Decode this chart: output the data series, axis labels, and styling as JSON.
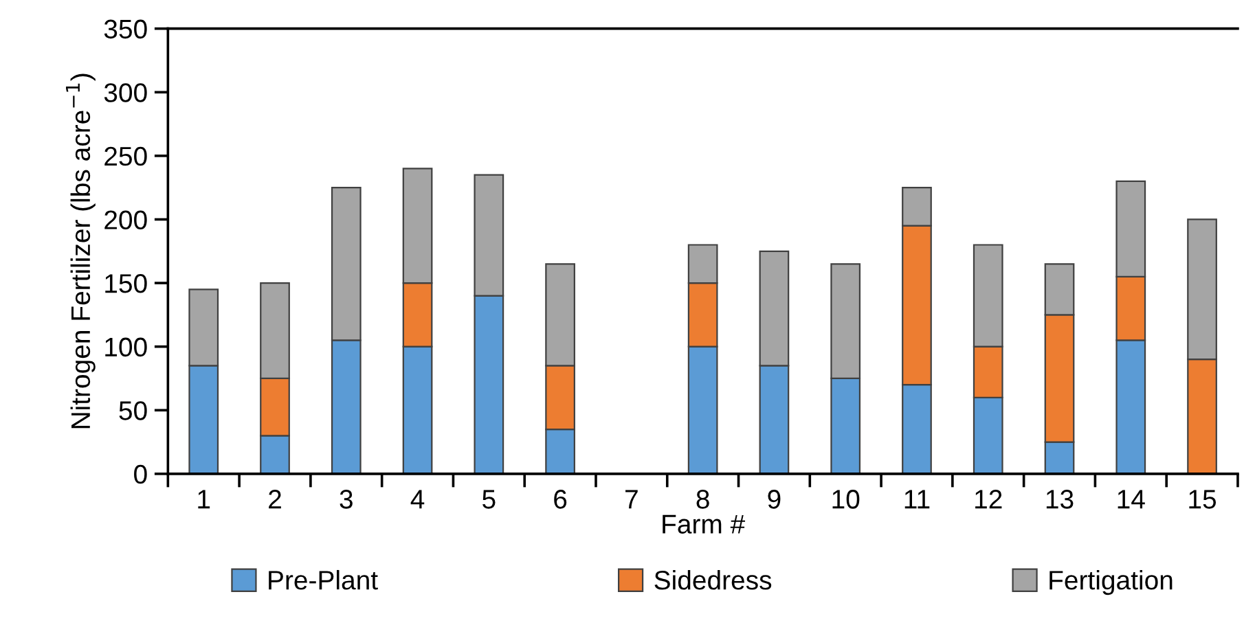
{
  "chart_data": {
    "type": "bar",
    "stacked": true,
    "xlabel": "Farm #",
    "ylabel": "Nitrogen Fertilizer (lbs acre$^{−1}$)",
    "categories": [
      "1",
      "2",
      "3",
      "4",
      "5",
      "6",
      "7",
      "8",
      "9",
      "10",
      "11",
      "12",
      "13",
      "14",
      "15"
    ],
    "series": [
      {
        "name": "Pre-Plant",
        "color": "#5b9bd5",
        "values": [
          85,
          30,
          105,
          100,
          140,
          35,
          null,
          100,
          85,
          75,
          70,
          60,
          25,
          105,
          null
        ]
      },
      {
        "name": "Sidedress",
        "color": "#ed7d31",
        "values": [
          null,
          45,
          null,
          50,
          null,
          50,
          null,
          50,
          null,
          null,
          125,
          40,
          100,
          50,
          90
        ]
      },
      {
        "name": "Fertigation",
        "color": "#a5a5a5",
        "values": [
          60,
          75,
          120,
          90,
          95,
          80,
          null,
          30,
          90,
          90,
          30,
          80,
          40,
          75,
          110
        ]
      }
    ],
    "ylim": [
      0,
      350
    ],
    "yticks": [
      0,
      50,
      100,
      150,
      200,
      250,
      300,
      350
    ],
    "grid": false,
    "legend": "bottom"
  }
}
